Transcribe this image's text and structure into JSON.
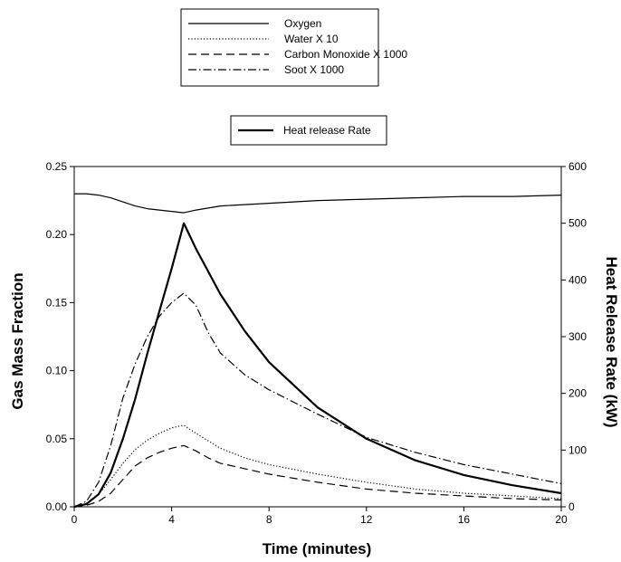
{
  "chart_data": {
    "type": "line",
    "title": "",
    "xlabel": "Time (minutes)",
    "ylabel_left": "Gas Mass Fraction",
    "ylabel_right": "Heat Release Rate (kW)",
    "xlim": [
      0,
      20
    ],
    "ylim_left": [
      0,
      0.25
    ],
    "ylim_right": [
      0,
      600
    ],
    "x_ticks": [
      0,
      4,
      8,
      12,
      16,
      20
    ],
    "y_left_ticks": [
      "0.00",
      "0.05",
      "0.10",
      "0.15",
      "0.20",
      "0.25"
    ],
    "y_right_ticks": [
      "0",
      "100",
      "200",
      "300",
      "400",
      "500",
      "600"
    ],
    "grid": false,
    "legend_gas": {
      "placement": "top-center",
      "entries": [
        "Oxygen",
        "Water X 10",
        "Carbon Monoxide X 1000",
        "Soot X 1000"
      ]
    },
    "legend_heat": {
      "placement": "top-center",
      "entries": [
        "Heat release Rate"
      ]
    },
    "series": [
      {
        "name": "Oxygen",
        "axis": "left",
        "style": "solid-thin",
        "points": [
          [
            0,
            0.23
          ],
          [
            0.5,
            0.23
          ],
          [
            1,
            0.229
          ],
          [
            1.5,
            0.227
          ],
          [
            2,
            0.224
          ],
          [
            2.5,
            0.221
          ],
          [
            3,
            0.219
          ],
          [
            3.5,
            0.218
          ],
          [
            4,
            0.217
          ],
          [
            4.5,
            0.216
          ],
          [
            5,
            0.218
          ],
          [
            6,
            0.221
          ],
          [
            8,
            0.223
          ],
          [
            10,
            0.225
          ],
          [
            12,
            0.226
          ],
          [
            14,
            0.227
          ],
          [
            16,
            0.228
          ],
          [
            18,
            0.228
          ],
          [
            20,
            0.229
          ]
        ]
      },
      {
        "name": "Water X 10",
        "axis": "left",
        "style": "dotted",
        "points": [
          [
            0,
            0
          ],
          [
            0.5,
            0.002
          ],
          [
            1,
            0.009
          ],
          [
            1.5,
            0.02
          ],
          [
            2,
            0.032
          ],
          [
            2.5,
            0.042
          ],
          [
            3,
            0.049
          ],
          [
            3.5,
            0.054
          ],
          [
            4,
            0.058
          ],
          [
            4.5,
            0.06
          ],
          [
            5,
            0.054
          ],
          [
            6,
            0.043
          ],
          [
            7,
            0.036
          ],
          [
            8,
            0.031
          ],
          [
            10,
            0.024
          ],
          [
            12,
            0.018
          ],
          [
            14,
            0.013
          ],
          [
            16,
            0.01
          ],
          [
            18,
            0.008
          ],
          [
            20,
            0.006
          ]
        ]
      },
      {
        "name": "Carbon Monoxide X 1000",
        "axis": "left",
        "style": "dashed",
        "points": [
          [
            0,
            0
          ],
          [
            0.5,
            0.001
          ],
          [
            1,
            0.004
          ],
          [
            1.5,
            0.01
          ],
          [
            2,
            0.02
          ],
          [
            2.5,
            0.03
          ],
          [
            3,
            0.036
          ],
          [
            3.5,
            0.04
          ],
          [
            4,
            0.043
          ],
          [
            4.5,
            0.045
          ],
          [
            5,
            0.041
          ],
          [
            5.5,
            0.036
          ],
          [
            6,
            0.032
          ],
          [
            7,
            0.028
          ],
          [
            8,
            0.024
          ],
          [
            10,
            0.018
          ],
          [
            12,
            0.013
          ],
          [
            14,
            0.01
          ],
          [
            16,
            0.008
          ],
          [
            18,
            0.006
          ],
          [
            20,
            0.005
          ]
        ]
      },
      {
        "name": "Soot X 1000",
        "axis": "left",
        "style": "dashdot",
        "points": [
          [
            0,
            0
          ],
          [
            0.5,
            0.004
          ],
          [
            1,
            0.018
          ],
          [
            1.5,
            0.045
          ],
          [
            2,
            0.08
          ],
          [
            2.5,
            0.105
          ],
          [
            3,
            0.125
          ],
          [
            3.5,
            0.14
          ],
          [
            4,
            0.15
          ],
          [
            4.5,
            0.157
          ],
          [
            5,
            0.148
          ],
          [
            5.5,
            0.128
          ],
          [
            6,
            0.113
          ],
          [
            7,
            0.097
          ],
          [
            8,
            0.086
          ],
          [
            10,
            0.068
          ],
          [
            12,
            0.051
          ],
          [
            14,
            0.04
          ],
          [
            16,
            0.031
          ],
          [
            18,
            0.024
          ],
          [
            20,
            0.017
          ]
        ]
      },
      {
        "name": "Heat release Rate",
        "axis": "right",
        "style": "solid-thick",
        "points": [
          [
            0,
            0
          ],
          [
            0.5,
            5
          ],
          [
            1,
            22
          ],
          [
            1.5,
            60
          ],
          [
            2,
            120
          ],
          [
            2.5,
            190
          ],
          [
            3,
            270
          ],
          [
            3.5,
            345
          ],
          [
            4,
            420
          ],
          [
            4.5,
            500
          ],
          [
            5,
            455
          ],
          [
            6,
            375
          ],
          [
            7,
            310
          ],
          [
            8,
            255
          ],
          [
            10,
            175
          ],
          [
            12,
            120
          ],
          [
            14,
            82
          ],
          [
            16,
            56
          ],
          [
            18,
            38
          ],
          [
            20,
            24
          ]
        ]
      }
    ]
  }
}
